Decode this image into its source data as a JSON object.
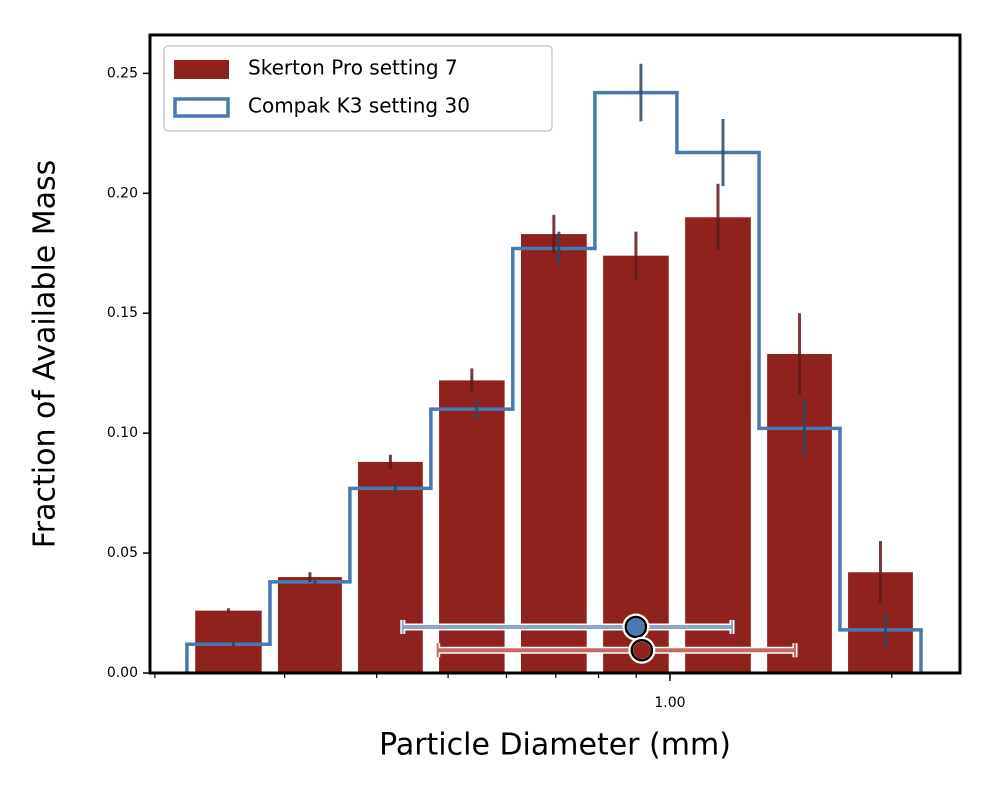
{
  "chart_data": {
    "type": "histogram",
    "xlabel": "Particle Diameter (mm)",
    "ylabel": "Fraction of Available Mass",
    "log_x": true,
    "xlim": [
      0.197,
      2.475
    ],
    "ylim": [
      0,
      0.266
    ],
    "xticks": [
      {
        "value": 1,
        "label": "1.00"
      }
    ],
    "xminor_ticks": [
      0.2,
      0.3,
      0.4,
      0.5,
      0.6,
      0.7,
      0.8,
      0.9,
      2
    ],
    "yticks": [
      {
        "value": 0,
        "label": "0.00"
      },
      {
        "value": 0.05,
        "label": "0.05"
      },
      {
        "value": 0.1,
        "label": "0.10"
      },
      {
        "value": 0.15,
        "label": "0.15"
      },
      {
        "value": 0.2,
        "label": "0.20"
      },
      {
        "value": 0.25,
        "label": "0.25"
      }
    ],
    "legend": "upper left",
    "bins": [
      0.2211,
      0.2866,
      0.3679,
      0.4738,
      0.612,
      0.791,
      1.022,
      1.321,
      1.701,
      2.191
    ],
    "series": [
      {
        "name": "Skerton Pro setting 7",
        "style": "filled",
        "color": "#8f221d",
        "error_color": "#5c1c1a",
        "values": [
          0.026,
          0.04,
          0.088,
          0.122,
          0.183,
          0.174,
          0.19,
          0.133,
          0.042
        ],
        "errors": [
          0.001,
          0.002,
          0.003,
          0.005,
          0.008,
          0.01,
          0.014,
          0.017,
          0.013
        ],
        "summary": {
          "x": 0.916,
          "xlo": 0.484,
          "xhi": 1.478,
          "y": 0.0095,
          "line_color": "#c46a66"
        }
      },
      {
        "name": "Compak K3 setting 30",
        "style": "step",
        "color": "#4a78b0",
        "error_color": "#2f4660",
        "values": [
          0.012,
          0.038,
          0.077,
          0.11,
          0.177,
          0.242,
          0.217,
          0.102,
          0.018
        ],
        "errors": [
          0.001,
          0.001,
          0.002,
          0.004,
          0.007,
          0.012,
          0.014,
          0.012,
          0.007
        ],
        "summary": {
          "x": 0.899,
          "xlo": 0.434,
          "xhi": 1.214,
          "y": 0.0192,
          "line_color": "#8aa6cc"
        }
      }
    ]
  }
}
